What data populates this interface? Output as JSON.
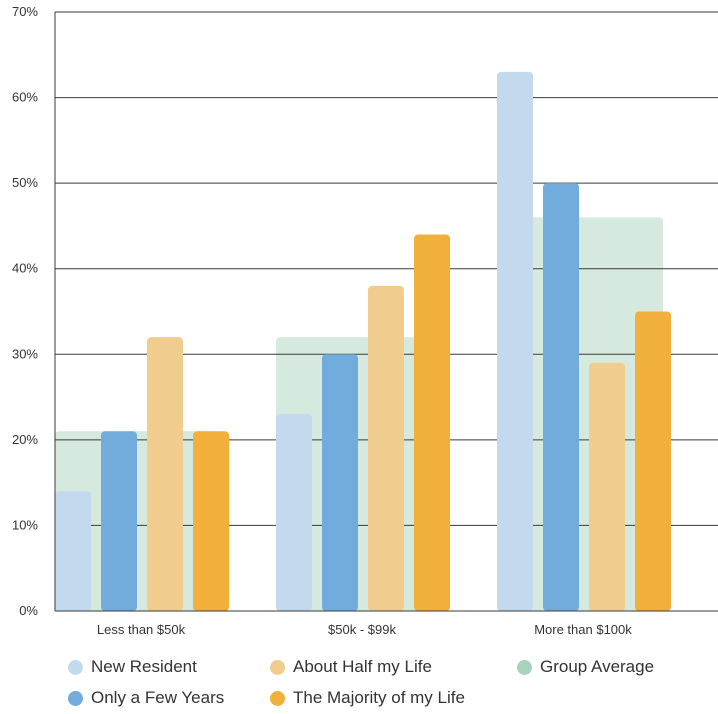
{
  "chart_data": {
    "type": "bar",
    "title": "",
    "xlabel": "",
    "ylabel": "",
    "ylim": [
      0,
      70
    ],
    "ytick_values": [
      0,
      10,
      20,
      30,
      40,
      50,
      60,
      70
    ],
    "ytick_labels": [
      "0%",
      "10%",
      "20%",
      "30%",
      "40%",
      "50%",
      "60%",
      "70%"
    ],
    "grid": "horizontal",
    "legend_position": "bottom",
    "categories": [
      "Less than $50k",
      "$50k - $99k",
      "More than $100k"
    ],
    "series": [
      {
        "name": "New Resident",
        "color": "#c3d9ee",
        "values": [
          14,
          23,
          63
        ]
      },
      {
        "name": "Only a Few Years",
        "color": "#72acdc",
        "values": [
          21,
          30,
          50
        ]
      },
      {
        "name": "About Half my Life",
        "color": "#f0cd8f",
        "values": [
          32,
          38,
          29
        ]
      },
      {
        "name": "The Majority of my Life",
        "color": "#f0b03b",
        "values": [
          21,
          44,
          35
        ]
      }
    ],
    "group_average": {
      "name": "Group Average",
      "color": "#d5e9df",
      "values": [
        21,
        32,
        46
      ]
    }
  },
  "legend": [
    {
      "label": "New Resident",
      "color": "#c3d9ee"
    },
    {
      "label": "About Half my Life",
      "color": "#f0cd8f"
    },
    {
      "label": "Group Average",
      "color": "#a9d2bc"
    },
    {
      "label": "Only a Few Years",
      "color": "#72acdc"
    },
    {
      "label": "The Majority of my Life",
      "color": "#f0b03b"
    }
  ]
}
